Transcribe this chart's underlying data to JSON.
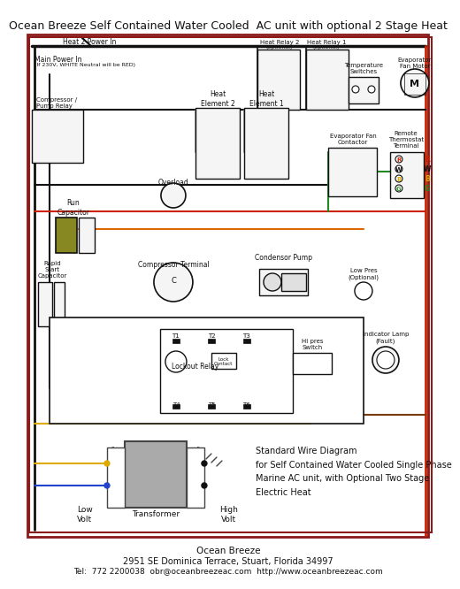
{
  "title": "Ocean Breeze Self Contained Water Cooled  AC unit with optional 2 Stage Heat",
  "footer_line1": "Ocean Breeze",
  "footer_line2": "2951 SE Dominica Terrace, Stuart, Florida 34997",
  "footer_line3": "Tel:  772 2200038  obr@oceanbreezeac.com  http://www.oceanbreezeac.com",
  "std_text": "Standard Wire Diagram\nfor Self Contained Water Cooled Single Phase\nMarine AC unit, with Optional Two Stage\nElectric Heat",
  "bg": "#ffffff",
  "border_dark": "#8B1A1A",
  "border_light": "#cccccc",
  "blk": "#111111",
  "red": "#cc2200",
  "blu": "#2244cc",
  "yel": "#ddaa00",
  "org": "#dd6600",
  "brn": "#7a3a10",
  "grn": "#228822",
  "gry": "#888888",
  "lgry": "#e0e0e0",
  "mgry": "#aaaaaa"
}
